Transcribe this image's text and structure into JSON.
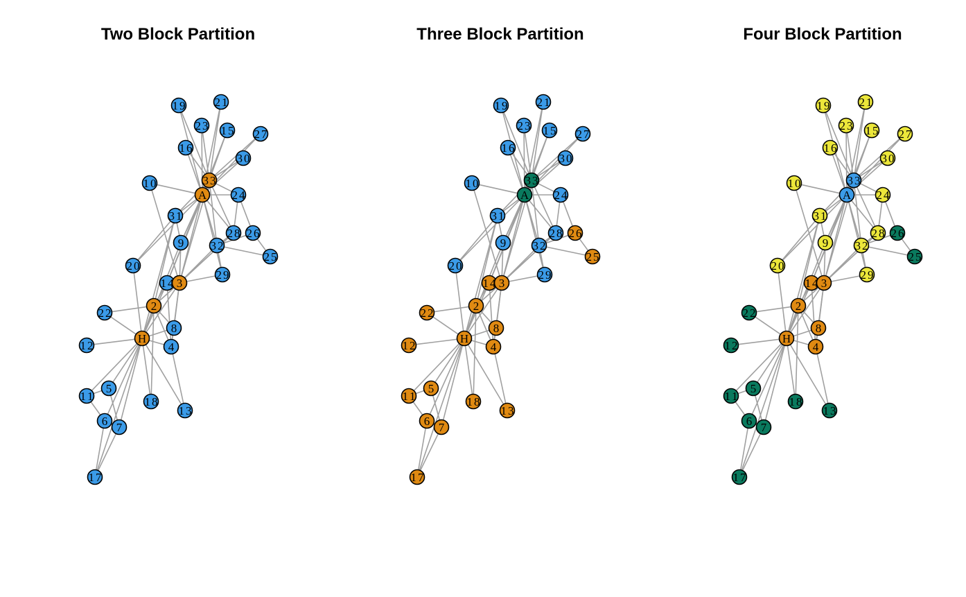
{
  "colors": {
    "blue": "#3b9be8",
    "orange": "#e08a12",
    "green": "#0a7a5e",
    "yellow": "#ece73a",
    "edge": "#a0a0a0"
  },
  "nodes": [
    "19",
    "21",
    "23",
    "15",
    "27",
    "16",
    "30",
    "33",
    "A",
    "10",
    "24",
    "31",
    "28",
    "26",
    "9",
    "32",
    "25",
    "20",
    "29",
    "14",
    "3",
    "2",
    "22",
    "8",
    "H",
    "12",
    "4",
    "11",
    "5",
    "18",
    "13",
    "6",
    "7",
    "17"
  ],
  "edges": [
    [
      "A",
      "19"
    ],
    [
      "A",
      "21"
    ],
    [
      "A",
      "23"
    ],
    [
      "A",
      "15"
    ],
    [
      "A",
      "27"
    ],
    [
      "A",
      "16"
    ],
    [
      "A",
      "30"
    ],
    [
      "A",
      "10"
    ],
    [
      "A",
      "24"
    ],
    [
      "A",
      "31"
    ],
    [
      "A",
      "28"
    ],
    [
      "A",
      "9"
    ],
    [
      "A",
      "32"
    ],
    [
      "A",
      "20"
    ],
    [
      "A",
      "29"
    ],
    [
      "A",
      "14"
    ],
    [
      "A",
      "3"
    ],
    [
      "A",
      "33"
    ],
    [
      "33",
      "19"
    ],
    [
      "33",
      "21"
    ],
    [
      "33",
      "23"
    ],
    [
      "33",
      "15"
    ],
    [
      "33",
      "27"
    ],
    [
      "33",
      "16"
    ],
    [
      "33",
      "30"
    ],
    [
      "33",
      "24"
    ],
    [
      "33",
      "31"
    ],
    [
      "33",
      "28"
    ],
    [
      "33",
      "9"
    ],
    [
      "33",
      "32"
    ],
    [
      "33",
      "14"
    ],
    [
      "33",
      "3"
    ],
    [
      "24",
      "26"
    ],
    [
      "24",
      "28"
    ],
    [
      "26",
      "32"
    ],
    [
      "26",
      "25"
    ],
    [
      "32",
      "25"
    ],
    [
      "32",
      "28"
    ],
    [
      "32",
      "29"
    ],
    [
      "32",
      "3"
    ],
    [
      "28",
      "3"
    ],
    [
      "29",
      "3"
    ],
    [
      "30",
      "33"
    ],
    [
      "31",
      "9"
    ],
    [
      "31",
      "20"
    ],
    [
      "10",
      "3"
    ],
    [
      "H",
      "2"
    ],
    [
      "H",
      "3"
    ],
    [
      "H",
      "4"
    ],
    [
      "H",
      "8"
    ],
    [
      "H",
      "5"
    ],
    [
      "H",
      "6"
    ],
    [
      "H",
      "7"
    ],
    [
      "H",
      "11"
    ],
    [
      "H",
      "12"
    ],
    [
      "H",
      "13"
    ],
    [
      "H",
      "14"
    ],
    [
      "H",
      "18"
    ],
    [
      "H",
      "20"
    ],
    [
      "H",
      "22"
    ],
    [
      "H",
      "31"
    ],
    [
      "H",
      "9"
    ],
    [
      "H",
      "17"
    ],
    [
      "2",
      "3"
    ],
    [
      "2",
      "4"
    ],
    [
      "2",
      "8"
    ],
    [
      "2",
      "14"
    ],
    [
      "2",
      "18"
    ],
    [
      "2",
      "22"
    ],
    [
      "2",
      "31"
    ],
    [
      "3",
      "4"
    ],
    [
      "3",
      "8"
    ],
    [
      "3",
      "9"
    ],
    [
      "3",
      "14"
    ],
    [
      "3",
      "28"
    ],
    [
      "4",
      "8"
    ],
    [
      "4",
      "13"
    ],
    [
      "4",
      "14"
    ],
    [
      "14",
      "33"
    ],
    [
      "9",
      "33"
    ],
    [
      "5",
      "7"
    ],
    [
      "5",
      "11"
    ],
    [
      "6",
      "7"
    ],
    [
      "6",
      "11"
    ],
    [
      "6",
      "17"
    ],
    [
      "7",
      "17"
    ]
  ],
  "panels": [
    {
      "title": "Two Block Partition",
      "groups": {
        "orange": [
          "33",
          "A",
          "3",
          "2",
          "H"
        ]
      },
      "default_group": "blue"
    },
    {
      "title": "Three Block Partition",
      "groups": {
        "green": [
          "33",
          "A"
        ],
        "orange": [
          "26",
          "25",
          "14",
          "3",
          "2",
          "22",
          "8",
          "H",
          "12",
          "4",
          "11",
          "5",
          "18",
          "13",
          "6",
          "7",
          "17"
        ]
      },
      "default_group": "blue"
    },
    {
      "title": "Four Block Partition",
      "groups": {
        "blue": [
          "33",
          "A"
        ],
        "orange": [
          "14",
          "3",
          "2",
          "8",
          "H",
          "4"
        ],
        "green": [
          "26",
          "25",
          "22",
          "12",
          "11",
          "5",
          "18",
          "13",
          "6",
          "7",
          "17"
        ]
      },
      "default_group": "yellow"
    }
  ]
}
